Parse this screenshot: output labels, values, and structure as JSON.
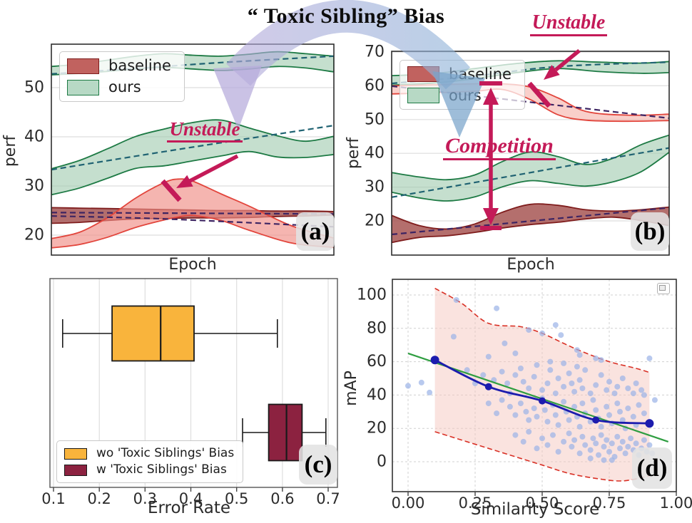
{
  "figure_title": "“ Toxic Sibling” Bias",
  "panel_labels": {
    "a": "(a)",
    "b": "(b)",
    "c": "(c)",
    "d": "(d)"
  },
  "annotations": {
    "unstable_a": "Unstable",
    "unstable_b": "Unstable",
    "competition": "Competition"
  },
  "colors": {
    "annotation": "#c41a58",
    "ribbon_left": "#b5aadb",
    "ribbon_right": "#8fb3d8",
    "arrowhead_left": "#b5aadb",
    "arrowhead_right": "#78a3cb",
    "grid": "#dedede",
    "spine": "#2e2e2e"
  },
  "chart_data": [
    {
      "id": "a",
      "type": "area",
      "xlabel": "Epoch",
      "ylabel": "perf",
      "xlim": [
        0,
        1
      ],
      "ylim": [
        16,
        59
      ],
      "yticks": [
        20,
        30,
        40,
        50
      ],
      "annotation": "Unstable",
      "legend": [
        {
          "label": "baseline",
          "fill": "#c1625f",
          "edge": "#7f1d1d"
        },
        {
          "label": "ours",
          "fill": "#b7d9c5",
          "edge": "#1d7a44"
        }
      ],
      "bands": [
        {
          "name": "ours-top",
          "fill": "#9ec9ae",
          "opacity": 0.6,
          "edge": "#1d7a44",
          "x": [
            0,
            0.1,
            0.2,
            0.3,
            0.4,
            0.5,
            0.6,
            0.7,
            0.8,
            0.9,
            1
          ],
          "upper": [
            54.3,
            54.8,
            55.6,
            56.4,
            56.9,
            56.6,
            56.4,
            56.8,
            57.3,
            56.9,
            56.4
          ],
          "lower": [
            52.6,
            52.9,
            53.3,
            53.8,
            54.1,
            53.8,
            53.5,
            53.8,
            54.3,
            54.0,
            53.2
          ]
        },
        {
          "name": "ours-mid",
          "fill": "#9ec9ae",
          "opacity": 0.6,
          "edge": "#1d7a44",
          "x": [
            0,
            0.1,
            0.2,
            0.3,
            0.4,
            0.5,
            0.6,
            0.7,
            0.8,
            0.9,
            1
          ],
          "upper": [
            33.5,
            35.2,
            37.6,
            40.1,
            41.6,
            42.9,
            43.4,
            41.8,
            40.2,
            39.1,
            40.1
          ],
          "lower": [
            28.2,
            29.6,
            31.6,
            33.6,
            34.1,
            35.1,
            36.1,
            37.0,
            35.9,
            35.8,
            36.4
          ]
        },
        {
          "name": "baseline-flat",
          "fill": "#9f4a48",
          "opacity": 0.8,
          "edge": "#7f1d1d",
          "x": [
            0,
            0.1,
            0.2,
            0.3,
            0.4,
            0.5,
            0.6,
            0.7,
            0.8,
            0.9,
            1
          ],
          "upper": [
            25.6,
            25.5,
            25.4,
            25.3,
            25.2,
            25.1,
            25.0,
            25.0,
            24.9,
            24.9,
            24.8
          ],
          "lower": [
            22.4,
            22.6,
            23.0,
            23.3,
            23.4,
            23.5,
            23.5,
            23.6,
            23.8,
            23.9,
            24.1
          ]
        },
        {
          "name": "baseline-bump",
          "fill": "#ef8d85",
          "opacity": 0.65,
          "edge": "#e2453c",
          "x": [
            0,
            0.1,
            0.2,
            0.3,
            0.4,
            0.45,
            0.5,
            0.6,
            0.7,
            0.85,
            1
          ],
          "upper": [
            19.3,
            20.6,
            23.6,
            27.6,
            30.7,
            31.4,
            31.0,
            28.4,
            25.9,
            21.9,
            19.4
          ],
          "lower": [
            17.4,
            18.1,
            19.6,
            21.6,
            23.1,
            23.7,
            24.0,
            23.0,
            21.0,
            18.4,
            17.5
          ]
        }
      ],
      "trends": [
        {
          "name": "ours-top-trend",
          "color": "#1f6272",
          "x": [
            0,
            0.3,
            0.6,
            1
          ],
          "y": [
            52.8,
            53.9,
            55.1,
            56.4
          ]
        },
        {
          "name": "ours-mid-trend",
          "color": "#1f6272",
          "x": [
            0,
            0.5,
            1
          ],
          "y": [
            33.3,
            37.9,
            42.3
          ]
        },
        {
          "name": "baseline-flat-trend",
          "color": "#3d2462",
          "x": [
            0,
            1
          ],
          "y": [
            24.6,
            24.3
          ]
        },
        {
          "name": "baseline-decline-trend",
          "color": "#3d2462",
          "x": [
            0,
            0.4,
            1
          ],
          "y": [
            23.9,
            23.3,
            21.7
          ]
        }
      ]
    },
    {
      "id": "b",
      "type": "area",
      "xlabel": "Epoch",
      "ylabel": "perf",
      "xlim": [
        0,
        1
      ],
      "ylim": [
        10,
        70.5
      ],
      "yticks": [
        20,
        30,
        40,
        50,
        60,
        70
      ],
      "annotation_unstable": "Unstable",
      "annotation_competition": "Competition",
      "legend": [
        {
          "label": "baseline",
          "fill": "#c1625f",
          "edge": "#7f1d1d"
        },
        {
          "label": "ours",
          "fill": "#b7d9c5",
          "edge": "#1d7a44"
        }
      ],
      "bands": [
        {
          "name": "ours-top",
          "fill": "#9ec9ae",
          "opacity": 0.6,
          "edge": "#1d7a44",
          "x": [
            0,
            0.15,
            0.3,
            0.45,
            0.6,
            0.75,
            0.9,
            1
          ],
          "upper": [
            63.0,
            63.6,
            65.1,
            66.6,
            67.4,
            67.0,
            66.7,
            67.2
          ],
          "lower": [
            60.2,
            60.8,
            62.1,
            63.9,
            65.1,
            64.2,
            63.7,
            63.9
          ]
        },
        {
          "name": "baseline-top",
          "fill": "#f4a79f",
          "opacity": 0.55,
          "edge": "#e2453c",
          "x": [
            0,
            0.15,
            0.3,
            0.4,
            0.5,
            0.6,
            0.7,
            0.85,
            1
          ],
          "upper": [
            60.0,
            60.3,
            60.6,
            60.6,
            59.6,
            56.4,
            52.4,
            51.3,
            51.6
          ],
          "lower": [
            57.6,
            57.9,
            58.4,
            58.9,
            55.9,
            51.4,
            49.8,
            49.5,
            49.7
          ]
        },
        {
          "name": "ours-mid",
          "fill": "#9ec9ae",
          "opacity": 0.6,
          "edge": "#1d7a44",
          "x": [
            0,
            0.1,
            0.2,
            0.3,
            0.4,
            0.5,
            0.6,
            0.7,
            0.8,
            0.9,
            1
          ],
          "upper": [
            34.3,
            33.0,
            32.2,
            33.6,
            37.6,
            40.4,
            39.0,
            36.7,
            38.6,
            42.6,
            45.4
          ],
          "lower": [
            28.5,
            26.8,
            25.9,
            27.1,
            30.1,
            31.9,
            31.1,
            30.3,
            31.6,
            34.6,
            40.3
          ]
        },
        {
          "name": "baseline-bottom",
          "fill": "#a14b49",
          "opacity": 0.8,
          "edge": "#7f1d1d",
          "x": [
            0,
            0.1,
            0.2,
            0.3,
            0.4,
            0.5,
            0.6,
            0.7,
            0.8,
            0.9,
            1
          ],
          "upper": [
            21.6,
            18.6,
            17.6,
            19.1,
            22.6,
            24.9,
            24.6,
            23.3,
            22.9,
            23.3,
            24.1
          ],
          "lower": [
            13.6,
            15.1,
            15.6,
            16.6,
            17.9,
            18.9,
            19.6,
            20.6,
            21.1,
            20.1,
            18.6
          ]
        }
      ],
      "trends": [
        {
          "name": "ours-top-trend",
          "color": "#1f6272",
          "x": [
            0,
            0.3,
            0.6,
            1
          ],
          "y": [
            60.7,
            62.9,
            65.7,
            67.0
          ]
        },
        {
          "name": "ours-mid-trend",
          "color": "#1f6272",
          "x": [
            0,
            1
          ],
          "y": [
            27.0,
            41.6
          ]
        },
        {
          "name": "baseline-top-trend",
          "color": "#3d2462",
          "x": [
            0,
            1
          ],
          "y": [
            59.9,
            50.4
          ]
        },
        {
          "name": "baseline-bottom-trend",
          "color": "#3d2462",
          "x": [
            0,
            1
          ],
          "y": [
            16.0,
            23.9
          ]
        }
      ]
    },
    {
      "id": "c",
      "type": "boxplot",
      "xlabel": "Error Rate",
      "xticks": [
        0.1,
        0.2,
        0.3,
        0.4,
        0.5,
        0.6,
        0.7
      ],
      "xlim": [
        0.092,
        0.715
      ],
      "boxes": [
        {
          "label": "wo 'Toxic Siblings' Bias",
          "color": "#f9b43c",
          "edge": "#1a1a1a",
          "whisker_low": 0.12,
          "q1": 0.228,
          "median": 0.334,
          "q3": 0.407,
          "whisker_high": 0.589
        },
        {
          "label": "w 'Toxic Siblings' Bias",
          "color": "#8c2240",
          "edge": "#1a1a1a",
          "whisker_low": 0.513,
          "q1": 0.57,
          "median": 0.609,
          "q3": 0.643,
          "whisker_high": 0.695
        }
      ]
    },
    {
      "id": "d",
      "type": "scatter",
      "xlabel": "Similarity Score",
      "ylabel": "mAP",
      "xticks": [
        0,
        0.25,
        0.5,
        0.75,
        1.0
      ],
      "yticks": [
        0,
        20,
        40,
        60,
        80,
        100
      ],
      "xlim": [
        -0.06,
        1.0
      ],
      "ylim": [
        -18,
        110
      ],
      "scatter_color": "#9db4e8",
      "mean_color": "#1c1cae",
      "fit_color": "#2f9e41",
      "bound_color": "#d93025",
      "bound_fill": "#f6c7c0",
      "mean_line": [
        [
          0.1,
          61
        ],
        [
          0.3,
          45
        ],
        [
          0.5,
          36.5
        ],
        [
          0.7,
          25
        ],
        [
          0.9,
          23
        ]
      ],
      "fit_line": [
        [
          0.0,
          65
        ],
        [
          0.97,
          12
        ]
      ],
      "bound_upper": [
        [
          0.1,
          104
        ],
        [
          0.2,
          95
        ],
        [
          0.3,
          83
        ],
        [
          0.42,
          81
        ],
        [
          0.5,
          77
        ],
        [
          0.58,
          71
        ],
        [
          0.65,
          66
        ],
        [
          0.75,
          60
        ],
        [
          0.85,
          56
        ],
        [
          0.9,
          53.5
        ]
      ],
      "bound_lower": [
        [
          0.1,
          18
        ],
        [
          0.2,
          13
        ],
        [
          0.3,
          8
        ],
        [
          0.4,
          3
        ],
        [
          0.5,
          -2
        ],
        [
          0.6,
          -7
        ],
        [
          0.7,
          -10
        ],
        [
          0.8,
          -11.5
        ],
        [
          0.9,
          -8.5
        ]
      ],
      "scatter": [
        [
          0.0,
          45.5
        ],
        [
          0.05,
          47.5
        ],
        [
          0.08,
          41.5
        ],
        [
          0.18,
          97
        ],
        [
          0.33,
          92
        ],
        [
          0.17,
          75
        ],
        [
          0.45,
          79
        ],
        [
          0.5,
          77
        ],
        [
          0.55,
          82
        ],
        [
          0.57,
          76
        ],
        [
          0.63,
          67
        ],
        [
          0.64,
          64
        ],
        [
          0.7,
          62
        ],
        [
          0.72,
          61
        ],
        [
          0.9,
          62
        ],
        [
          0.36,
          71
        ],
        [
          0.4,
          65
        ],
        [
          0.3,
          63
        ],
        [
          0.22,
          55
        ],
        [
          0.25,
          47
        ],
        [
          0.28,
          52
        ],
        [
          0.3,
          45
        ],
        [
          0.32,
          49
        ],
        [
          0.35,
          54
        ],
        [
          0.37,
          47
        ],
        [
          0.38,
          41
        ],
        [
          0.4,
          52
        ],
        [
          0.42,
          56
        ],
        [
          0.43,
          48
        ],
        [
          0.45,
          44
        ],
        [
          0.47,
          51
        ],
        [
          0.48,
          58
        ],
        [
          0.5,
          43
        ],
        [
          0.52,
          47
        ],
        [
          0.53,
          55
        ],
        [
          0.55,
          41
        ],
        [
          0.56,
          50
        ],
        [
          0.58,
          45
        ],
        [
          0.6,
          53
        ],
        [
          0.61,
          47
        ],
        [
          0.62,
          42
        ],
        [
          0.64,
          49
        ],
        [
          0.65,
          44
        ],
        [
          0.66,
          55
        ],
        [
          0.68,
          41
        ],
        [
          0.7,
          46
        ],
        [
          0.72,
          52
        ],
        [
          0.74,
          43
        ],
        [
          0.75,
          48
        ],
        [
          0.77,
          41
        ],
        [
          0.78,
          45
        ],
        [
          0.8,
          50
        ],
        [
          0.82,
          44
        ],
        [
          0.84,
          41
        ],
        [
          0.85,
          47
        ],
        [
          0.87,
          43
        ],
        [
          0.88,
          40
        ],
        [
          0.63,
          57
        ],
        [
          0.58,
          59
        ],
        [
          0.53,
          60
        ],
        [
          0.35,
          37
        ],
        [
          0.38,
          33
        ],
        [
          0.4,
          28
        ],
        [
          0.42,
          35
        ],
        [
          0.44,
          30
        ],
        [
          0.45,
          25
        ],
        [
          0.47,
          32
        ],
        [
          0.48,
          27
        ],
        [
          0.5,
          38
        ],
        [
          0.51,
          31
        ],
        [
          0.52,
          24
        ],
        [
          0.54,
          34
        ],
        [
          0.55,
          28
        ],
        [
          0.56,
          22
        ],
        [
          0.58,
          36
        ],
        [
          0.59,
          30
        ],
        [
          0.6,
          25
        ],
        [
          0.62,
          33
        ],
        [
          0.63,
          27
        ],
        [
          0.64,
          21
        ],
        [
          0.65,
          35
        ],
        [
          0.66,
          29
        ],
        [
          0.68,
          24
        ],
        [
          0.69,
          37
        ],
        [
          0.7,
          31
        ],
        [
          0.71,
          26
        ],
        [
          0.72,
          21
        ],
        [
          0.74,
          33
        ],
        [
          0.75,
          28
        ],
        [
          0.76,
          23
        ],
        [
          0.78,
          35
        ],
        [
          0.79,
          30
        ],
        [
          0.8,
          25
        ],
        [
          0.81,
          20
        ],
        [
          0.82,
          32
        ],
        [
          0.84,
          27
        ],
        [
          0.85,
          22
        ],
        [
          0.86,
          34
        ],
        [
          0.88,
          29
        ],
        [
          0.9,
          24
        ],
        [
          0.92,
          37
        ],
        [
          0.33,
          29
        ],
        [
          0.3,
          35
        ],
        [
          0.4,
          16
        ],
        [
          0.43,
          12
        ],
        [
          0.45,
          18
        ],
        [
          0.48,
          8
        ],
        [
          0.5,
          14
        ],
        [
          0.52,
          10
        ],
        [
          0.54,
          16
        ],
        [
          0.56,
          6
        ],
        [
          0.58,
          12
        ],
        [
          0.6,
          17
        ],
        [
          0.61,
          9
        ],
        [
          0.62,
          13
        ],
        [
          0.64,
          5
        ],
        [
          0.65,
          15
        ],
        [
          0.66,
          10
        ],
        [
          0.68,
          7
        ],
        [
          0.69,
          14
        ],
        [
          0.7,
          11
        ],
        [
          0.71,
          4
        ],
        [
          0.72,
          16
        ],
        [
          0.73,
          9
        ],
        [
          0.74,
          13
        ],
        [
          0.75,
          6
        ],
        [
          0.76,
          11
        ],
        [
          0.77,
          3
        ],
        [
          0.78,
          15
        ],
        [
          0.79,
          8
        ],
        [
          0.8,
          12
        ],
        [
          0.81,
          5
        ],
        [
          0.82,
          9
        ],
        [
          0.83,
          14
        ],
        [
          0.84,
          7
        ],
        [
          0.85,
          11
        ],
        [
          0.86,
          4
        ],
        [
          0.87,
          8
        ],
        [
          0.88,
          13
        ],
        [
          0.89,
          6
        ],
        [
          0.9,
          10
        ],
        [
          0.91,
          5
        ],
        [
          0.76,
          1
        ],
        [
          0.68,
          2
        ],
        [
          0.73,
          1
        ]
      ]
    }
  ]
}
